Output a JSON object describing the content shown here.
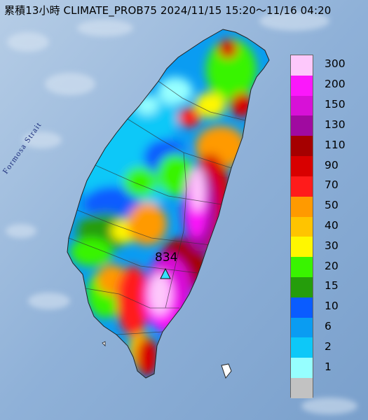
{
  "title": "累積13小時 CLIMATE_PROB75 2024/11/15 15:20～11/16 04:20",
  "sea_label": "Formosa Strait",
  "peak_value": "834",
  "legend": [
    {
      "label": "300",
      "color": "#fdc8fb"
    },
    {
      "label": "200",
      "color": "#fb18fb"
    },
    {
      "label": "150",
      "color": "#d711d7"
    },
    {
      "label": "130",
      "color": "#a00aa0"
    },
    {
      "label": "110",
      "color": "#a50000"
    },
    {
      "label": "90",
      "color": "#d80000"
    },
    {
      "label": "70",
      "color": "#ff1b1b"
    },
    {
      "label": "50",
      "color": "#ff9a00"
    },
    {
      "label": "40",
      "color": "#ffc400"
    },
    {
      "label": "30",
      "color": "#fff700"
    },
    {
      "label": "20",
      "color": "#39f400"
    },
    {
      "label": "15",
      "color": "#259d0b"
    },
    {
      "label": "10",
      "color": "#0a5cff"
    },
    {
      "label": "6",
      "color": "#0a9cf2"
    },
    {
      "label": "2",
      "color": "#0dc8f8"
    },
    {
      "label": "1",
      "color": "#96ffff"
    },
    {
      "label": "",
      "color": "#c2c2c2"
    }
  ]
}
